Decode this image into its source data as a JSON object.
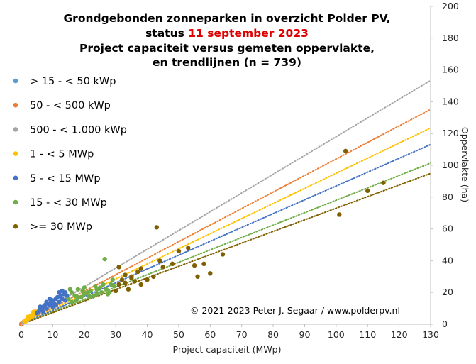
{
  "chart_data": {
    "type": "scatter",
    "title_lines": [
      "Grondgebonden zonneparken in overzicht Polder PV,",
      "Project capaciteit  versus gemeten oppervlakte,",
      "en trendlijnen  (n = 739)"
    ],
    "status_prefix": "status ",
    "status_date": "11 september 2023",
    "xlabel": "Project capaciteit (MWp)",
    "ylabel": "Oppervlakte  (ha)",
    "xlim": [
      0,
      130
    ],
    "ylim": [
      0,
      200
    ],
    "x_ticks": [
      "0",
      "10",
      "20",
      "30",
      "40",
      "50",
      "60",
      "70",
      "80",
      "90",
      "100",
      "110",
      "120",
      "130"
    ],
    "y_ticks": [
      "0",
      "20",
      "40",
      "60",
      "80",
      "100",
      "120",
      "140",
      "160",
      "180",
      "200"
    ],
    "y_axis_side": "right",
    "grid": false,
    "legend_position": "left",
    "copyright": "© 2021-2023  Peter J. Segaar / www.polderpv.nl",
    "series": [
      {
        "name": "> 15 - < 50 kWp",
        "color": "#5b9bd5",
        "points": [
          [
            0.02,
            0.04
          ],
          [
            0.03,
            0.05
          ],
          [
            0.04,
            0.08
          ],
          [
            0.03,
            0.06
          ],
          [
            0.045,
            0.07
          ]
        ],
        "trend_slope": null
      },
      {
        "name": "50 - < 500 kWp",
        "color": "#ed7d31",
        "points": [
          [
            0.1,
            0.2
          ],
          [
            0.2,
            0.3
          ],
          [
            0.3,
            0.45
          ],
          [
            0.4,
            0.6
          ],
          [
            0.25,
            0.5
          ],
          [
            0.15,
            0.3
          ],
          [
            0.35,
            0.7
          ],
          [
            0.45,
            0.8
          ]
        ],
        "trend_slope": 1.04
      },
      {
        "name": "500 - < 1.000 kWp",
        "color": "#a5a5a5",
        "points": [
          [
            0.5,
            0.9
          ],
          [
            0.6,
            1.0
          ],
          [
            0.7,
            1.2
          ],
          [
            0.8,
            1.4
          ],
          [
            0.9,
            1.5
          ],
          [
            0.65,
            1.1
          ],
          [
            0.75,
            1.3
          ],
          [
            0.95,
            1.6
          ]
        ],
        "trend_slope": 1.18
      },
      {
        "name": "1 - < 5 MWp",
        "color": "#ffc000",
        "points": [
          [
            1,
            2
          ],
          [
            1.2,
            2.3
          ],
          [
            1.5,
            2.5
          ],
          [
            1.8,
            3
          ],
          [
            2,
            3.5
          ],
          [
            2.2,
            4
          ],
          [
            2.5,
            4.5
          ],
          [
            2.8,
            5
          ],
          [
            3,
            4.8
          ],
          [
            3.2,
            5.5
          ],
          [
            3.5,
            6
          ],
          [
            3.8,
            6.5
          ],
          [
            4,
            7
          ],
          [
            4.2,
            6.8
          ],
          [
            4.5,
            8
          ],
          [
            4.8,
            7.5
          ],
          [
            1.4,
            1.8
          ],
          [
            2.6,
            3.8
          ],
          [
            3.4,
            5.2
          ],
          [
            4.4,
            6.5
          ],
          [
            2.1,
            4.6
          ],
          [
            3.9,
            7.8
          ]
        ],
        "trend_slope": 0.95
      },
      {
        "name": "5 - < 15 MWp",
        "color": "#4472c4",
        "points": [
          [
            5,
            7
          ],
          [
            5.5,
            8
          ],
          [
            6,
            9
          ],
          [
            6.5,
            10
          ],
          [
            7,
            11
          ],
          [
            7.5,
            12
          ],
          [
            8,
            10
          ],
          [
            8.5,
            13
          ],
          [
            9,
            12
          ],
          [
            9.5,
            14
          ],
          [
            10,
            15
          ],
          [
            10.5,
            13
          ],
          [
            11,
            16
          ],
          [
            11.5,
            17
          ],
          [
            12,
            14
          ],
          [
            12.5,
            18
          ],
          [
            13,
            16
          ],
          [
            13.5,
            19
          ],
          [
            14,
            20
          ],
          [
            14.5,
            18
          ],
          [
            6,
            11
          ],
          [
            8,
            14
          ],
          [
            10,
            11
          ],
          [
            12,
            20
          ],
          [
            14,
            15
          ],
          [
            7,
            8
          ],
          [
            9,
            16
          ],
          [
            11,
            12
          ],
          [
            13,
            21
          ],
          [
            5.8,
            9.5
          ]
        ],
        "trend_slope": 0.87
      },
      {
        "name": "15 - < 30 MWp",
        "color": "#70ad47",
        "points": [
          [
            15,
            16
          ],
          [
            16,
            20
          ],
          [
            17,
            18
          ],
          [
            18,
            22
          ],
          [
            19,
            17
          ],
          [
            20,
            19
          ],
          [
            21,
            20
          ],
          [
            22,
            21
          ],
          [
            23,
            18
          ],
          [
            24,
            22
          ],
          [
            25,
            23
          ],
          [
            26,
            25
          ],
          [
            27,
            22
          ],
          [
            28,
            20
          ],
          [
            29,
            28
          ],
          [
            16,
            14
          ],
          [
            18,
            17
          ],
          [
            20,
            23
          ],
          [
            22,
            17
          ],
          [
            24,
            19
          ],
          [
            26.5,
            41
          ],
          [
            15.5,
            22
          ],
          [
            17.5,
            15
          ],
          [
            19.5,
            21
          ],
          [
            21.5,
            18
          ],
          [
            23.5,
            24
          ],
          [
            25.5,
            20
          ],
          [
            27.5,
            19
          ],
          [
            28.5,
            25
          ],
          [
            29.5,
            24
          ]
        ],
        "trend_slope": 0.78
      },
      {
        "name": ">= 30 MWp",
        "color": "#7f6000",
        "points": [
          [
            30,
            21
          ],
          [
            31,
            25
          ],
          [
            32,
            28
          ],
          [
            33,
            26
          ],
          [
            34,
            22
          ],
          [
            35,
            30
          ],
          [
            36,
            27
          ],
          [
            37,
            33
          ],
          [
            38,
            35
          ],
          [
            40,
            28
          ],
          [
            42,
            30
          ],
          [
            43,
            61
          ],
          [
            44,
            40
          ],
          [
            45,
            36
          ],
          [
            48,
            38
          ],
          [
            50,
            46
          ],
          [
            53,
            48
          ],
          [
            55,
            37
          ],
          [
            56,
            30
          ],
          [
            58,
            38
          ],
          [
            60,
            32
          ],
          [
            64,
            44
          ],
          [
            101,
            69
          ],
          [
            103,
            109
          ],
          [
            110,
            84
          ],
          [
            115,
            89
          ],
          [
            31,
            36
          ],
          [
            33,
            31
          ],
          [
            35,
            29
          ],
          [
            38,
            25
          ]
        ],
        "trend_slope": 0.73
      }
    ]
  }
}
